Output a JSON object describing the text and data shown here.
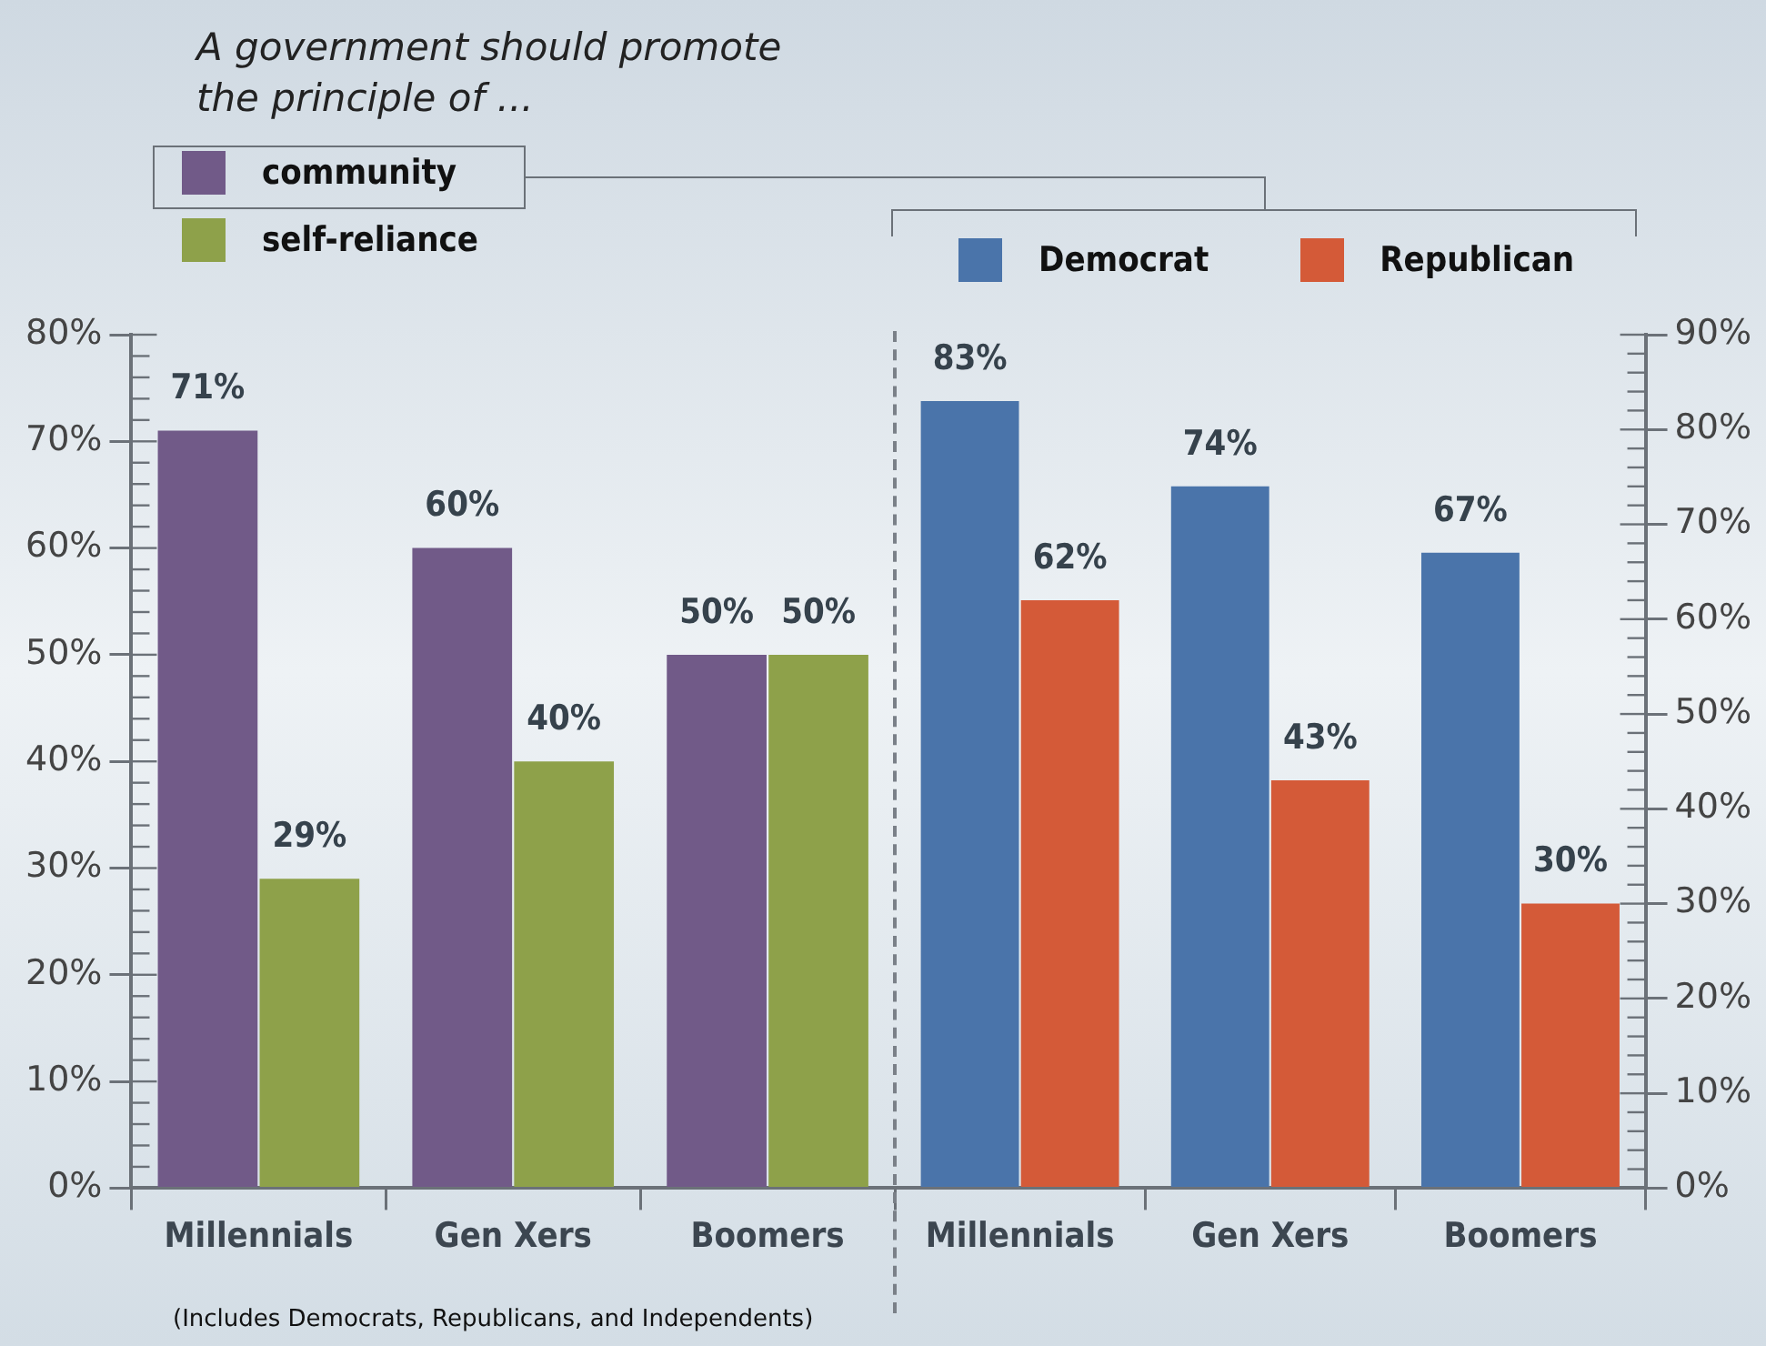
{
  "chart_data": [
    {
      "type": "bar",
      "title": "A government should promote the principle of ...",
      "categories": [
        "Millennials",
        "Gen Xers",
        "Boomers"
      ],
      "series": [
        {
          "name": "community",
          "color": "#715a88",
          "values": [
            71,
            60,
            50
          ],
          "value_labels": [
            "71%",
            "60%",
            "50%"
          ]
        },
        {
          "name": "self-reliance",
          "color": "#8ea14a",
          "values": [
            29,
            40,
            50
          ],
          "value_labels": [
            "29%",
            "40%",
            "50%"
          ]
        }
      ],
      "ylim": [
        0,
        80
      ],
      "yticks": [
        {
          "value": 0,
          "label": "0%"
        },
        {
          "value": 2,
          "label": null
        },
        {
          "value": 4,
          "label": null
        },
        {
          "value": 6,
          "label": null
        },
        {
          "value": 8,
          "label": null
        },
        {
          "value": 10,
          "label": "10%"
        },
        {
          "value": 12,
          "label": null
        },
        {
          "value": 14,
          "label": null
        },
        {
          "value": 16,
          "label": null
        },
        {
          "value": 18,
          "label": null
        },
        {
          "value": 20,
          "label": "20%"
        },
        {
          "value": 22,
          "label": null
        },
        {
          "value": 24,
          "label": null
        },
        {
          "value": 26,
          "label": null
        },
        {
          "value": 28,
          "label": null
        },
        {
          "value": 30,
          "label": "30%"
        },
        {
          "value": 32,
          "label": null
        },
        {
          "value": 34,
          "label": null
        },
        {
          "value": 36,
          "label": null
        },
        {
          "value": 38,
          "label": null
        },
        {
          "value": 40,
          "label": "40%"
        },
        {
          "value": 42,
          "label": null
        },
        {
          "value": 44,
          "label": null
        },
        {
          "value": 46,
          "label": null
        },
        {
          "value": 48,
          "label": null
        },
        {
          "value": 50,
          "label": "50%"
        },
        {
          "value": 52,
          "label": null
        },
        {
          "value": 54,
          "label": null
        },
        {
          "value": 56,
          "label": null
        },
        {
          "value": 58,
          "label": null
        },
        {
          "value": 60,
          "label": "60%"
        },
        {
          "value": 62,
          "label": null
        },
        {
          "value": 64,
          "label": null
        },
        {
          "value": 66,
          "label": null
        },
        {
          "value": 68,
          "label": null
        },
        {
          "value": 70,
          "label": "70%"
        },
        {
          "value": 72,
          "label": null
        },
        {
          "value": 74,
          "label": null
        },
        {
          "value": 76,
          "label": null
        },
        {
          "value": 78,
          "label": null
        },
        {
          "value": 80,
          "label": "80%"
        }
      ],
      "grid": false,
      "legend": "top left",
      "annotations": [
        "(Includes Democrats, Republicans, and Independents)"
      ]
    },
    {
      "type": "bar",
      "categories": [
        "Millennials",
        "Gen Xers",
        "Boomers"
      ],
      "series": [
        {
          "name": "Democrat",
          "color": "#4a74aa",
          "axis": "y2",
          "values": [
            83,
            74,
            67
          ],
          "value_labels": [
            "83%",
            "74%",
            "67%"
          ]
        },
        {
          "name": "Republican",
          "color": "#d45a38",
          "axis": "y2",
          "values": [
            62,
            43,
            30
          ],
          "value_labels": [
            "62%",
            "43%",
            "30%"
          ]
        }
      ],
      "y2lim": [
        0,
        90
      ],
      "y2ticks": [
        {
          "value": 0,
          "label": "0%"
        },
        {
          "value": 2,
          "label": null
        },
        {
          "value": 4,
          "label": null
        },
        {
          "value": 6,
          "label": null
        },
        {
          "value": 8,
          "label": null
        },
        {
          "value": 10,
          "label": "10%"
        },
        {
          "value": 12,
          "label": null
        },
        {
          "value": 14,
          "label": null
        },
        {
          "value": 16,
          "label": null
        },
        {
          "value": 18,
          "label": null
        },
        {
          "value": 20,
          "label": "20%"
        },
        {
          "value": 22,
          "label": null
        },
        {
          "value": 24,
          "label": null
        },
        {
          "value": 26,
          "label": null
        },
        {
          "value": 28,
          "label": null
        },
        {
          "value": 30,
          "label": "30%"
        },
        {
          "value": 32,
          "label": null
        },
        {
          "value": 34,
          "label": null
        },
        {
          "value": 36,
          "label": null
        },
        {
          "value": 38,
          "label": null
        },
        {
          "value": 40,
          "label": "40%"
        },
        {
          "value": 42,
          "label": null
        },
        {
          "value": 44,
          "label": null
        },
        {
          "value": 46,
          "label": null
        },
        {
          "value": 48,
          "label": null
        },
        {
          "value": 50,
          "label": "50%"
        },
        {
          "value": 52,
          "label": null
        },
        {
          "value": 54,
          "label": null
        },
        {
          "value": 56,
          "label": null
        },
        {
          "value": 58,
          "label": null
        },
        {
          "value": 60,
          "label": "60%"
        },
        {
          "value": 62,
          "label": null
        },
        {
          "value": 64,
          "label": null
        },
        {
          "value": 66,
          "label": null
        },
        {
          "value": 68,
          "label": null
        },
        {
          "value": 70,
          "label": "70%"
        },
        {
          "value": 72,
          "label": null
        },
        {
          "value": 74,
          "label": null
        },
        {
          "value": 76,
          "label": null
        },
        {
          "value": 78,
          "label": null
        },
        {
          "value": 80,
          "label": "80%"
        },
        {
          "value": 82,
          "label": null
        },
        {
          "value": 84,
          "label": null
        },
        {
          "value": 86,
          "label": null
        },
        {
          "value": 88,
          "label": null
        },
        {
          "value": 90,
          "label": "90%"
        }
      ],
      "grid": false,
      "legend": "top"
    }
  ]
}
